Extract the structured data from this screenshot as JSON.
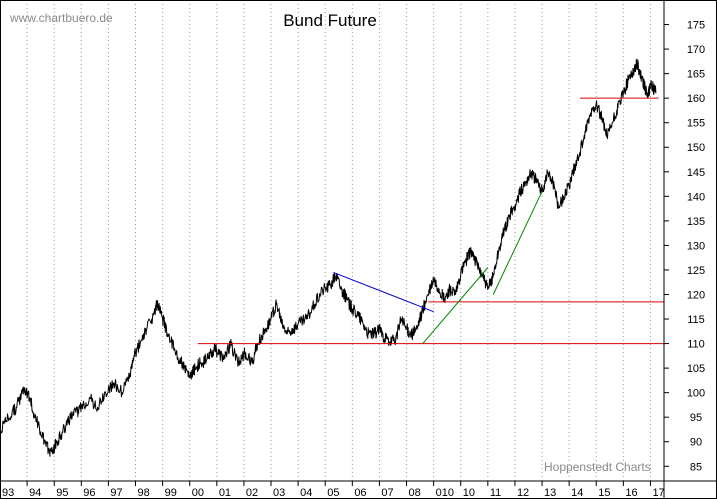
{
  "watermark_top": "www.chartbuero.de",
  "watermark_bottom": "Hoppenstedt Charts",
  "colors": {
    "price": "#000000",
    "resistance": "#dd0000",
    "downtrend": "#0000cc",
    "uptrend": "#008800",
    "grid": "#9a9a9a",
    "watermark": "#8a8a8a"
  },
  "chart_data": {
    "type": "line",
    "title": "Bund Future",
    "xlabel": "",
    "ylabel": "",
    "ylim": [
      82,
      180
    ],
    "xlim": [
      1993.0,
      2017.5
    ],
    "grid": "vertical dotted lines at each year",
    "y_axis_position": "right",
    "y_ticks": [
      85,
      90,
      95,
      100,
      105,
      110,
      115,
      120,
      125,
      130,
      135,
      140,
      145,
      150,
      155,
      160,
      165,
      170,
      175
    ],
    "x_tick_labels": [
      {
        "x": 1993,
        "label": "93"
      },
      {
        "x": 1994,
        "label": "94"
      },
      {
        "x": 1995,
        "label": "95"
      },
      {
        "x": 1996,
        "label": "96"
      },
      {
        "x": 1997,
        "label": "97"
      },
      {
        "x": 1998,
        "label": "98"
      },
      {
        "x": 1999,
        "label": "99"
      },
      {
        "x": 2000,
        "label": "00"
      },
      {
        "x": 2001,
        "label": "01"
      },
      {
        "x": 2002,
        "label": "02"
      },
      {
        "x": 2003,
        "label": "03"
      },
      {
        "x": 2004,
        "label": "04"
      },
      {
        "x": 2005,
        "label": "05"
      },
      {
        "x": 2006,
        "label": "06"
      },
      {
        "x": 2007,
        "label": "07"
      },
      {
        "x": 2008,
        "label": "08"
      },
      {
        "x": 2009,
        "label": "010"
      },
      {
        "x": 2010,
        "label": "10"
      },
      {
        "x": 2011,
        "label": "11"
      },
      {
        "x": 2012,
        "label": "12"
      },
      {
        "x": 2013,
        "label": "13"
      },
      {
        "x": 2014,
        "label": "14"
      },
      {
        "x": 2015,
        "label": "15"
      },
      {
        "x": 2016,
        "label": "16"
      },
      {
        "x": 2017,
        "label": "17"
      }
    ],
    "series": [
      {
        "type": "line",
        "points": [
          [
            1993.0,
            92
          ],
          [
            1993.3,
            95
          ],
          [
            1993.6,
            97
          ],
          [
            1993.9,
            101
          ],
          [
            1994.1,
            99
          ],
          [
            1994.3,
            95
          ],
          [
            1994.5,
            92
          ],
          [
            1994.7,
            89
          ],
          [
            1994.9,
            88
          ],
          [
            1995.1,
            90
          ],
          [
            1995.3,
            92
          ],
          [
            1995.5,
            94
          ],
          [
            1995.8,
            96
          ],
          [
            1996.0,
            97
          ],
          [
            1996.3,
            99
          ],
          [
            1996.6,
            97
          ],
          [
            1996.9,
            100
          ],
          [
            1997.2,
            102
          ],
          [
            1997.5,
            100
          ],
          [
            1997.8,
            104
          ],
          [
            1998.0,
            108
          ],
          [
            1998.3,
            112
          ],
          [
            1998.6,
            115
          ],
          [
            1998.8,
            118
          ],
          [
            1999.0,
            115
          ],
          [
            1999.2,
            112
          ],
          [
            1999.5,
            108
          ],
          [
            1999.8,
            105
          ],
          [
            2000.0,
            103
          ],
          [
            2000.2,
            105
          ],
          [
            2000.4,
            106
          ],
          [
            2000.7,
            107
          ],
          [
            2000.9,
            109
          ],
          [
            2001.1,
            108
          ],
          [
            2001.3,
            107
          ],
          [
            2001.5,
            110
          ],
          [
            2001.8,
            106
          ],
          [
            2002.0,
            108
          ],
          [
            2002.3,
            106
          ],
          [
            2002.5,
            110
          ],
          [
            2002.8,
            113
          ],
          [
            2003.0,
            115
          ],
          [
            2003.2,
            118
          ],
          [
            2003.4,
            114
          ],
          [
            2003.6,
            112
          ],
          [
            2003.8,
            113
          ],
          [
            2004.0,
            114
          ],
          [
            2004.3,
            115
          ],
          [
            2004.6,
            118
          ],
          [
            2004.9,
            121
          ],
          [
            2005.2,
            122
          ],
          [
            2005.4,
            124
          ],
          [
            2005.6,
            121
          ],
          [
            2005.8,
            119
          ],
          [
            2006.0,
            117
          ],
          [
            2006.2,
            116
          ],
          [
            2006.4,
            114
          ],
          [
            2006.6,
            112
          ],
          [
            2006.8,
            112
          ],
          [
            2007.0,
            113
          ],
          [
            2007.2,
            111
          ],
          [
            2007.4,
            110
          ],
          [
            2007.6,
            111
          ],
          [
            2007.8,
            115
          ],
          [
            2008.0,
            113
          ],
          [
            2008.2,
            112
          ],
          [
            2008.4,
            113
          ],
          [
            2008.6,
            117
          ],
          [
            2008.8,
            120
          ],
          [
            2009.0,
            123
          ],
          [
            2009.2,
            121
          ],
          [
            2009.4,
            119
          ],
          [
            2009.6,
            121
          ],
          [
            2009.8,
            120
          ],
          [
            2010.0,
            124
          ],
          [
            2010.2,
            127
          ],
          [
            2010.4,
            129
          ],
          [
            2010.6,
            126
          ],
          [
            2010.8,
            124
          ],
          [
            2011.0,
            121
          ],
          [
            2011.2,
            124
          ],
          [
            2011.4,
            129
          ],
          [
            2011.6,
            133
          ],
          [
            2011.8,
            136
          ],
          [
            2012.0,
            138
          ],
          [
            2012.2,
            141
          ],
          [
            2012.4,
            143
          ],
          [
            2012.6,
            145
          ],
          [
            2012.8,
            143
          ],
          [
            2013.0,
            141
          ],
          [
            2013.2,
            145
          ],
          [
            2013.4,
            143
          ],
          [
            2013.6,
            138
          ],
          [
            2013.8,
            140
          ],
          [
            2014.0,
            142
          ],
          [
            2014.2,
            146
          ],
          [
            2014.4,
            149
          ],
          [
            2014.6,
            153
          ],
          [
            2014.8,
            157
          ],
          [
            2015.0,
            159
          ],
          [
            2015.2,
            156
          ],
          [
            2015.4,
            152
          ],
          [
            2015.6,
            155
          ],
          [
            2015.8,
            158
          ],
          [
            2016.0,
            161
          ],
          [
            2016.2,
            164
          ],
          [
            2016.4,
            166
          ],
          [
            2016.5,
            167
          ],
          [
            2016.7,
            164
          ],
          [
            2016.9,
            160
          ],
          [
            2017.0,
            163
          ],
          [
            2017.2,
            161
          ]
        ]
      },
      {
        "type": "horizontal-line",
        "y": 110,
        "x": [
          2000.3,
          2017.5
        ]
      },
      {
        "type": "horizontal-line",
        "y": 118.5,
        "x": [
          2008.8,
          2017.5
        ]
      },
      {
        "type": "horizontal-line",
        "y": 160,
        "x": [
          2014.4,
          2017.3
        ]
      },
      {
        "type": "trendline",
        "points": [
          [
            2005.3,
            124.5
          ],
          [
            2009.0,
            116.5
          ]
        ]
      },
      {
        "type": "trendline",
        "points": [
          [
            2008.6,
            110
          ],
          [
            2011.0,
            125.5
          ]
        ]
      },
      {
        "type": "trendline",
        "points": [
          [
            2011.2,
            120
          ],
          [
            2013.0,
            141
          ]
        ]
      }
    ]
  }
}
